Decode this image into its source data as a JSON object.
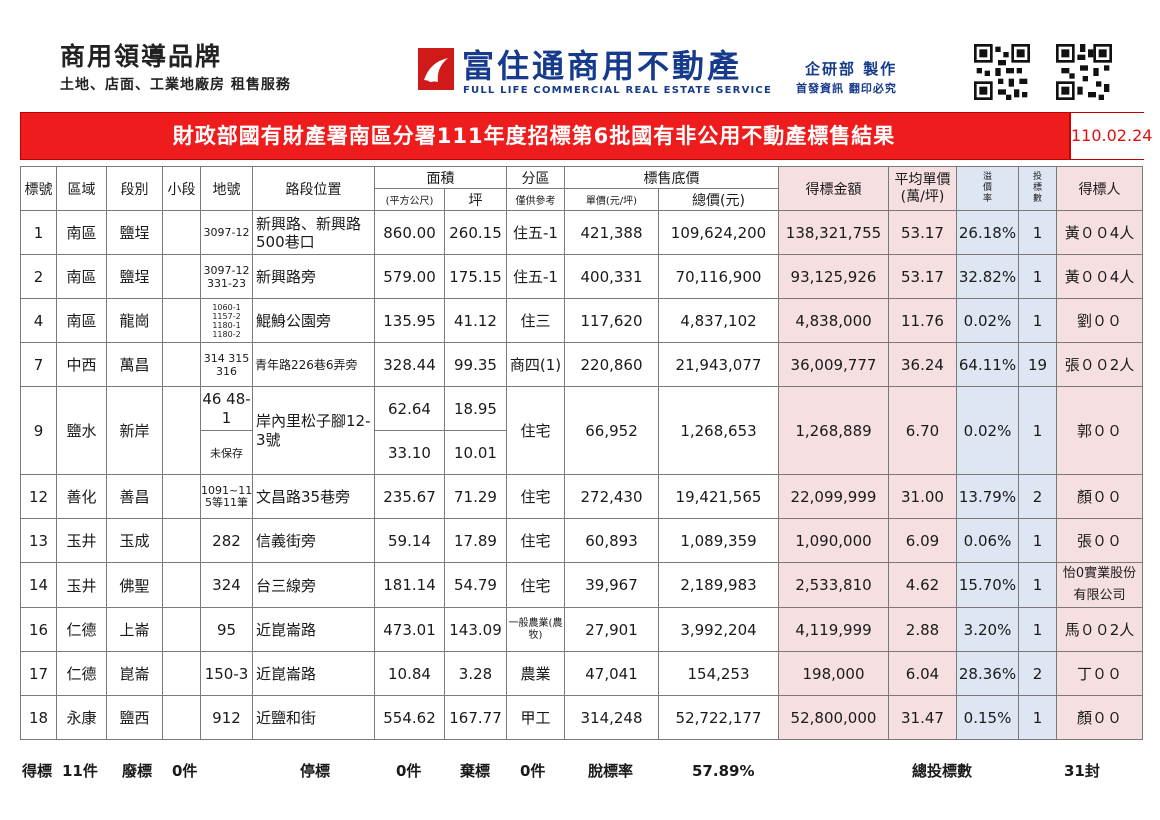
{
  "header": {
    "brand_title": "商用領導品牌",
    "brand_subtitle": "土地、店面、工業地廠房 租售服務",
    "logo_text": "富住通商用不動產",
    "logo_subtext": "FULL LIFE COMMERCIAL REAL ESTATE SERVICE",
    "dept": "企研部 製作",
    "dept_note": "首發資訊 翻印必究",
    "brand_color": "#163a8c"
  },
  "title": {
    "text": "財政部國有財產署南區分署111年度招標第6批國有非公用不動產標售結果",
    "date": "110.02.24",
    "bar_color": "#ee1c1c"
  },
  "columns": {
    "no": "標號",
    "district": "區域",
    "section": "段別",
    "subsection": "小段",
    "lot": "地號",
    "road": "路段位置",
    "area": "面積",
    "area_sqm": "(平方公尺)",
    "area_ping": "坪",
    "zoning": "分區",
    "zoning_note": "僅供參考",
    "base_price": "標售底價",
    "unit_price": "單價(元/坪)",
    "total_price": "總價(元)",
    "winning_amount": "得標金額",
    "avg_unit": "平均單價",
    "avg_unit_unit": "(萬/坪)",
    "premium_1": "溢",
    "premium_2": "價",
    "premium_3": "率",
    "bids_1": "投",
    "bids_2": "標",
    "bids_3": "數",
    "winner": "得標人"
  },
  "rows": [
    {
      "no": "1",
      "district": "南區",
      "section": "鹽埕",
      "subsection": "",
      "lot": "3097-12",
      "road": "新興路、新興路500巷口",
      "sqm": "860.00",
      "ping": "260.15",
      "zone": "住五-1",
      "unit": "421,388",
      "total": "109,624,200",
      "win": "138,321,755",
      "avg": "53.17",
      "premium": "26.18%",
      "bids": "1",
      "winner": "黃００4人"
    },
    {
      "no": "2",
      "district": "南區",
      "section": "鹽埕",
      "subsection": "",
      "lot": "3097-12 331-23",
      "road": "新興路旁",
      "sqm": "579.00",
      "ping": "175.15",
      "zone": "住五-1",
      "unit": "400,331",
      "total": "70,116,900",
      "win": "93,125,926",
      "avg": "53.17",
      "premium": "32.82%",
      "bids": "1",
      "winner": "黃００4人"
    },
    {
      "no": "4",
      "district": "南區",
      "section": "龍崗",
      "subsection": "",
      "lot": "1060-1 1157-2 1180-1 1180-2",
      "road": "鯤鯓公園旁",
      "sqm": "135.95",
      "ping": "41.12",
      "zone": "住三",
      "unit": "117,620",
      "total": "4,837,102",
      "win": "4,838,000",
      "avg": "11.76",
      "premium": "0.02%",
      "bids": "1",
      "winner": "劉００"
    },
    {
      "no": "7",
      "district": "中西",
      "section": "萬昌",
      "subsection": "",
      "lot": "314 315 316",
      "road": "青年路226巷6弄旁",
      "sqm": "328.44",
      "ping": "99.35",
      "zone": "商四(1)",
      "unit": "220,860",
      "total": "21,943,077",
      "win": "36,009,777",
      "avg": "36.24",
      "premium": "64.11%",
      "bids": "19",
      "winner": "張００2人"
    },
    {
      "no": "9",
      "district": "鹽水",
      "section": "新岸",
      "subsection": "",
      "lot": "46 48-1",
      "lot_b": "未保存",
      "road": "岸內里松子腳12-3號",
      "sqm": "62.64",
      "ping": "18.95",
      "sqm_b": "33.10",
      "ping_b": "10.01",
      "zone": "住宅",
      "unit": "66,952",
      "total": "1,268,653",
      "win": "1,268,889",
      "avg": "6.70",
      "premium": "0.02%",
      "bids": "1",
      "winner": "郭００"
    },
    {
      "no": "12",
      "district": "善化",
      "section": "善昌",
      "subsection": "",
      "lot": "1091~1103-5等11筆",
      "road": "文昌路35巷旁",
      "sqm": "235.67",
      "ping": "71.29",
      "zone": "住宅",
      "unit": "272,430",
      "total": "19,421,565",
      "win": "22,099,999",
      "avg": "31.00",
      "premium": "13.79%",
      "bids": "2",
      "winner": "顏００"
    },
    {
      "no": "13",
      "district": "玉井",
      "section": "玉成",
      "subsection": "",
      "lot": "282",
      "road": "信義街旁",
      "sqm": "59.14",
      "ping": "17.89",
      "zone": "住宅",
      "unit": "60,893",
      "total": "1,089,359",
      "win": "1,090,000",
      "avg": "6.09",
      "premium": "0.06%",
      "bids": "1",
      "winner": "張００"
    },
    {
      "no": "14",
      "district": "玉井",
      "section": "佛聖",
      "subsection": "",
      "lot": "324",
      "road": "台三線旁",
      "sqm": "181.14",
      "ping": "54.79",
      "zone": "住宅",
      "unit": "39,967",
      "total": "2,189,983",
      "win": "2,533,810",
      "avg": "4.62",
      "premium": "15.70%",
      "bids": "1",
      "winner": "怡0實業股份有限公司"
    },
    {
      "no": "16",
      "district": "仁德",
      "section": "上崙",
      "subsection": "",
      "lot": "95",
      "road": "近崑崙路",
      "sqm": "473.01",
      "ping": "143.09",
      "zone": "一般農業(農牧)",
      "unit": "27,901",
      "total": "3,992,204",
      "win": "4,119,999",
      "avg": "2.88",
      "premium": "3.20%",
      "bids": "1",
      "winner": "馬００2人"
    },
    {
      "no": "17",
      "district": "仁德",
      "section": "崑崙",
      "subsection": "",
      "lot": "150-3",
      "road": "近崑崙路",
      "sqm": "10.84",
      "ping": "3.28",
      "zone": "農業",
      "unit": "47,041",
      "total": "154,253",
      "win": "198,000",
      "avg": "6.04",
      "premium": "28.36%",
      "bids": "2",
      "winner": "丁００"
    },
    {
      "no": "18",
      "district": "永康",
      "section": "鹽西",
      "subsection": "",
      "lot": "912",
      "road": "近鹽和街",
      "sqm": "554.62",
      "ping": "167.77",
      "zone": "甲工",
      "unit": "314,248",
      "total": "52,722,177",
      "win": "52,800,000",
      "avg": "31.47",
      "premium": "0.15%",
      "bids": "1",
      "winner": "顏００"
    }
  ],
  "footer": {
    "won_label": "得標",
    "won_value": "11件",
    "void_label": "廢標",
    "void_value": "0件",
    "stop_label": "停標",
    "stop_value": "0件",
    "abandon_label": "棄標",
    "abandon_value": "0件",
    "rate_label": "脫標率",
    "rate_value": "57.89%",
    "total_bids_label": "總投標數",
    "total_bids_value": "31封"
  }
}
